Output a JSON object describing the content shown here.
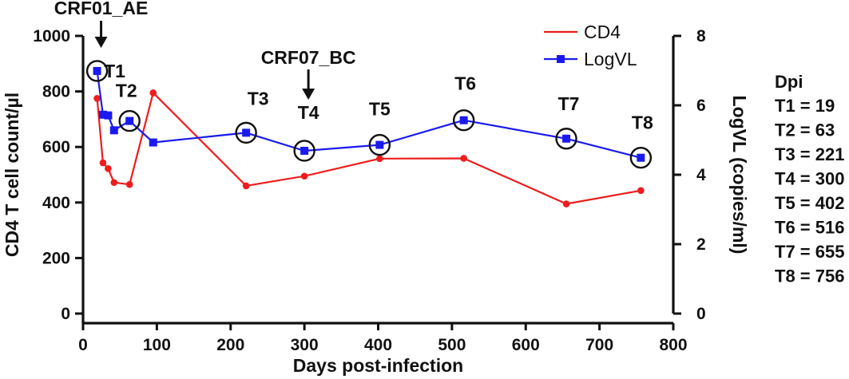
{
  "chart_data": {
    "type": "line",
    "xlabel": "Days post-infection",
    "ylabel_left": "CD4 T cell count/µl",
    "ylabel_right": "LogVL (copies/ml)",
    "xlim": [
      0,
      800
    ],
    "ylim_left": [
      0,
      1000
    ],
    "ylim_right": [
      0,
      8
    ],
    "x_ticks": [
      0,
      100,
      200,
      300,
      400,
      500,
      600,
      700,
      800
    ],
    "y_left_ticks": [
      0,
      200,
      400,
      600,
      800,
      1000
    ],
    "y_right_ticks": [
      0,
      2,
      4,
      6,
      8
    ],
    "grid": false,
    "legend_position": "top-right",
    "series": [
      {
        "name": "CD4",
        "axis": "left",
        "color": "#ee1c1c",
        "marker": "circle",
        "x": [
          19,
          27,
          34,
          42,
          63,
          95,
          221,
          300,
          402,
          516,
          655,
          756
        ],
        "y": [
          775,
          543,
          522,
          472,
          465,
          795,
          460,
          495,
          558,
          559,
          395,
          443
        ]
      },
      {
        "name": "LogVL",
        "axis": "right",
        "color": "#1a1aee",
        "marker": "square",
        "x": [
          19,
          27,
          34,
          42,
          63,
          95,
          221,
          300,
          402,
          516,
          655,
          756
        ],
        "y": [
          6.99,
          5.73,
          5.71,
          5.28,
          5.55,
          4.93,
          5.21,
          4.69,
          4.86,
          5.57,
          5.04,
          4.49
        ]
      }
    ],
    "timepoints": [
      {
        "label": "T1",
        "x": 19,
        "logvl": 6.99
      },
      {
        "label": "T2",
        "x": 63,
        "logvl": 5.55
      },
      {
        "label": "T3",
        "x": 221,
        "logvl": 5.21
      },
      {
        "label": "T4",
        "x": 300,
        "logvl": 4.69
      },
      {
        "label": "T5",
        "x": 402,
        "logvl": 4.86
      },
      {
        "label": "T6",
        "x": 516,
        "logvl": 5.57
      },
      {
        "label": "T7",
        "x": 655,
        "logvl": 5.04
      },
      {
        "label": "T8",
        "x": 756,
        "logvl": 4.49
      }
    ],
    "annotations": [
      {
        "text": "CRF01_AE",
        "x": 19
      },
      {
        "text": "CRF07_BC",
        "x": 300
      }
    ],
    "dpi_table": {
      "title": "Dpi",
      "rows": [
        "T1 = 19",
        "T2 = 63",
        "T3 = 221",
        "T4 = 300",
        "T5 = 402",
        "T6 = 516",
        "T7 = 655",
        "T8 = 756"
      ]
    }
  }
}
